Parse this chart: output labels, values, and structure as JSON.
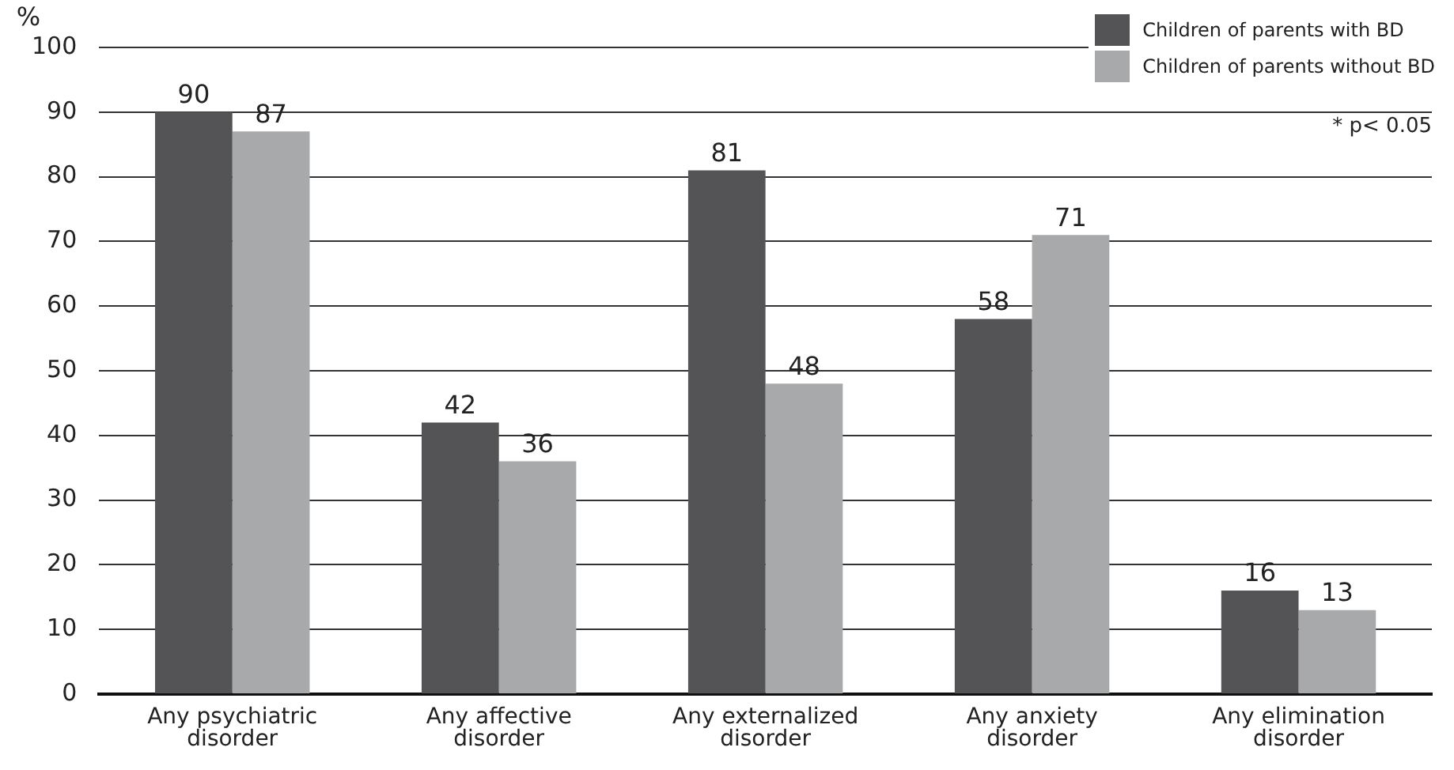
{
  "chart_data": {
    "type": "bar",
    "ylabel": "%",
    "categories": [
      "Any psychiatric disorder",
      "Any affective disorder",
      "Any externalized disorder",
      "Any anxiety disorder",
      "Any elimination disorder"
    ],
    "series": [
      {
        "name": "Children of parents with BD",
        "color": "#545456",
        "values": [
          90,
          42,
          81,
          58,
          16
        ]
      },
      {
        "name": "Children of parents without BD",
        "color": "#a8a9ab",
        "values": [
          87,
          36,
          48,
          71,
          13
        ]
      }
    ],
    "ylim": [
      0,
      100
    ],
    "yticks": [
      0,
      10,
      20,
      30,
      40,
      50,
      60,
      70,
      80,
      90,
      100
    ],
    "grid": "y",
    "legend": "top right",
    "data_labels": true,
    "annotations": [
      "* p< 0.05"
    ]
  }
}
